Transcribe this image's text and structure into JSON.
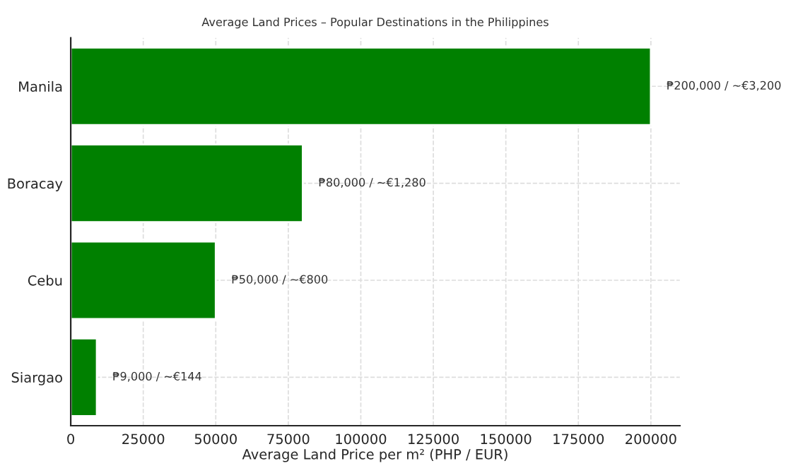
{
  "chart_data": {
    "type": "bar",
    "orientation": "horizontal",
    "title": "Average Land Prices – Popular Destinations in the Philippines",
    "xlabel": "Average Land Price per m² (PHP / EUR)",
    "categories": [
      "Manila",
      "Boracay",
      "Cebu",
      "Siargao"
    ],
    "values": [
      200000,
      80000,
      50000,
      9000
    ],
    "value_labels": [
      "₱200,000 / ~€3,200",
      "₱80,000 / ~€1,280",
      "₱50,000 / ~€800",
      "₱9,000 / ~€144"
    ],
    "color": "#008000",
    "xlim": [
      0,
      210000
    ],
    "xticks": [
      0,
      25000,
      50000,
      75000,
      100000,
      125000,
      150000,
      175000,
      200000
    ],
    "grid": true
  }
}
